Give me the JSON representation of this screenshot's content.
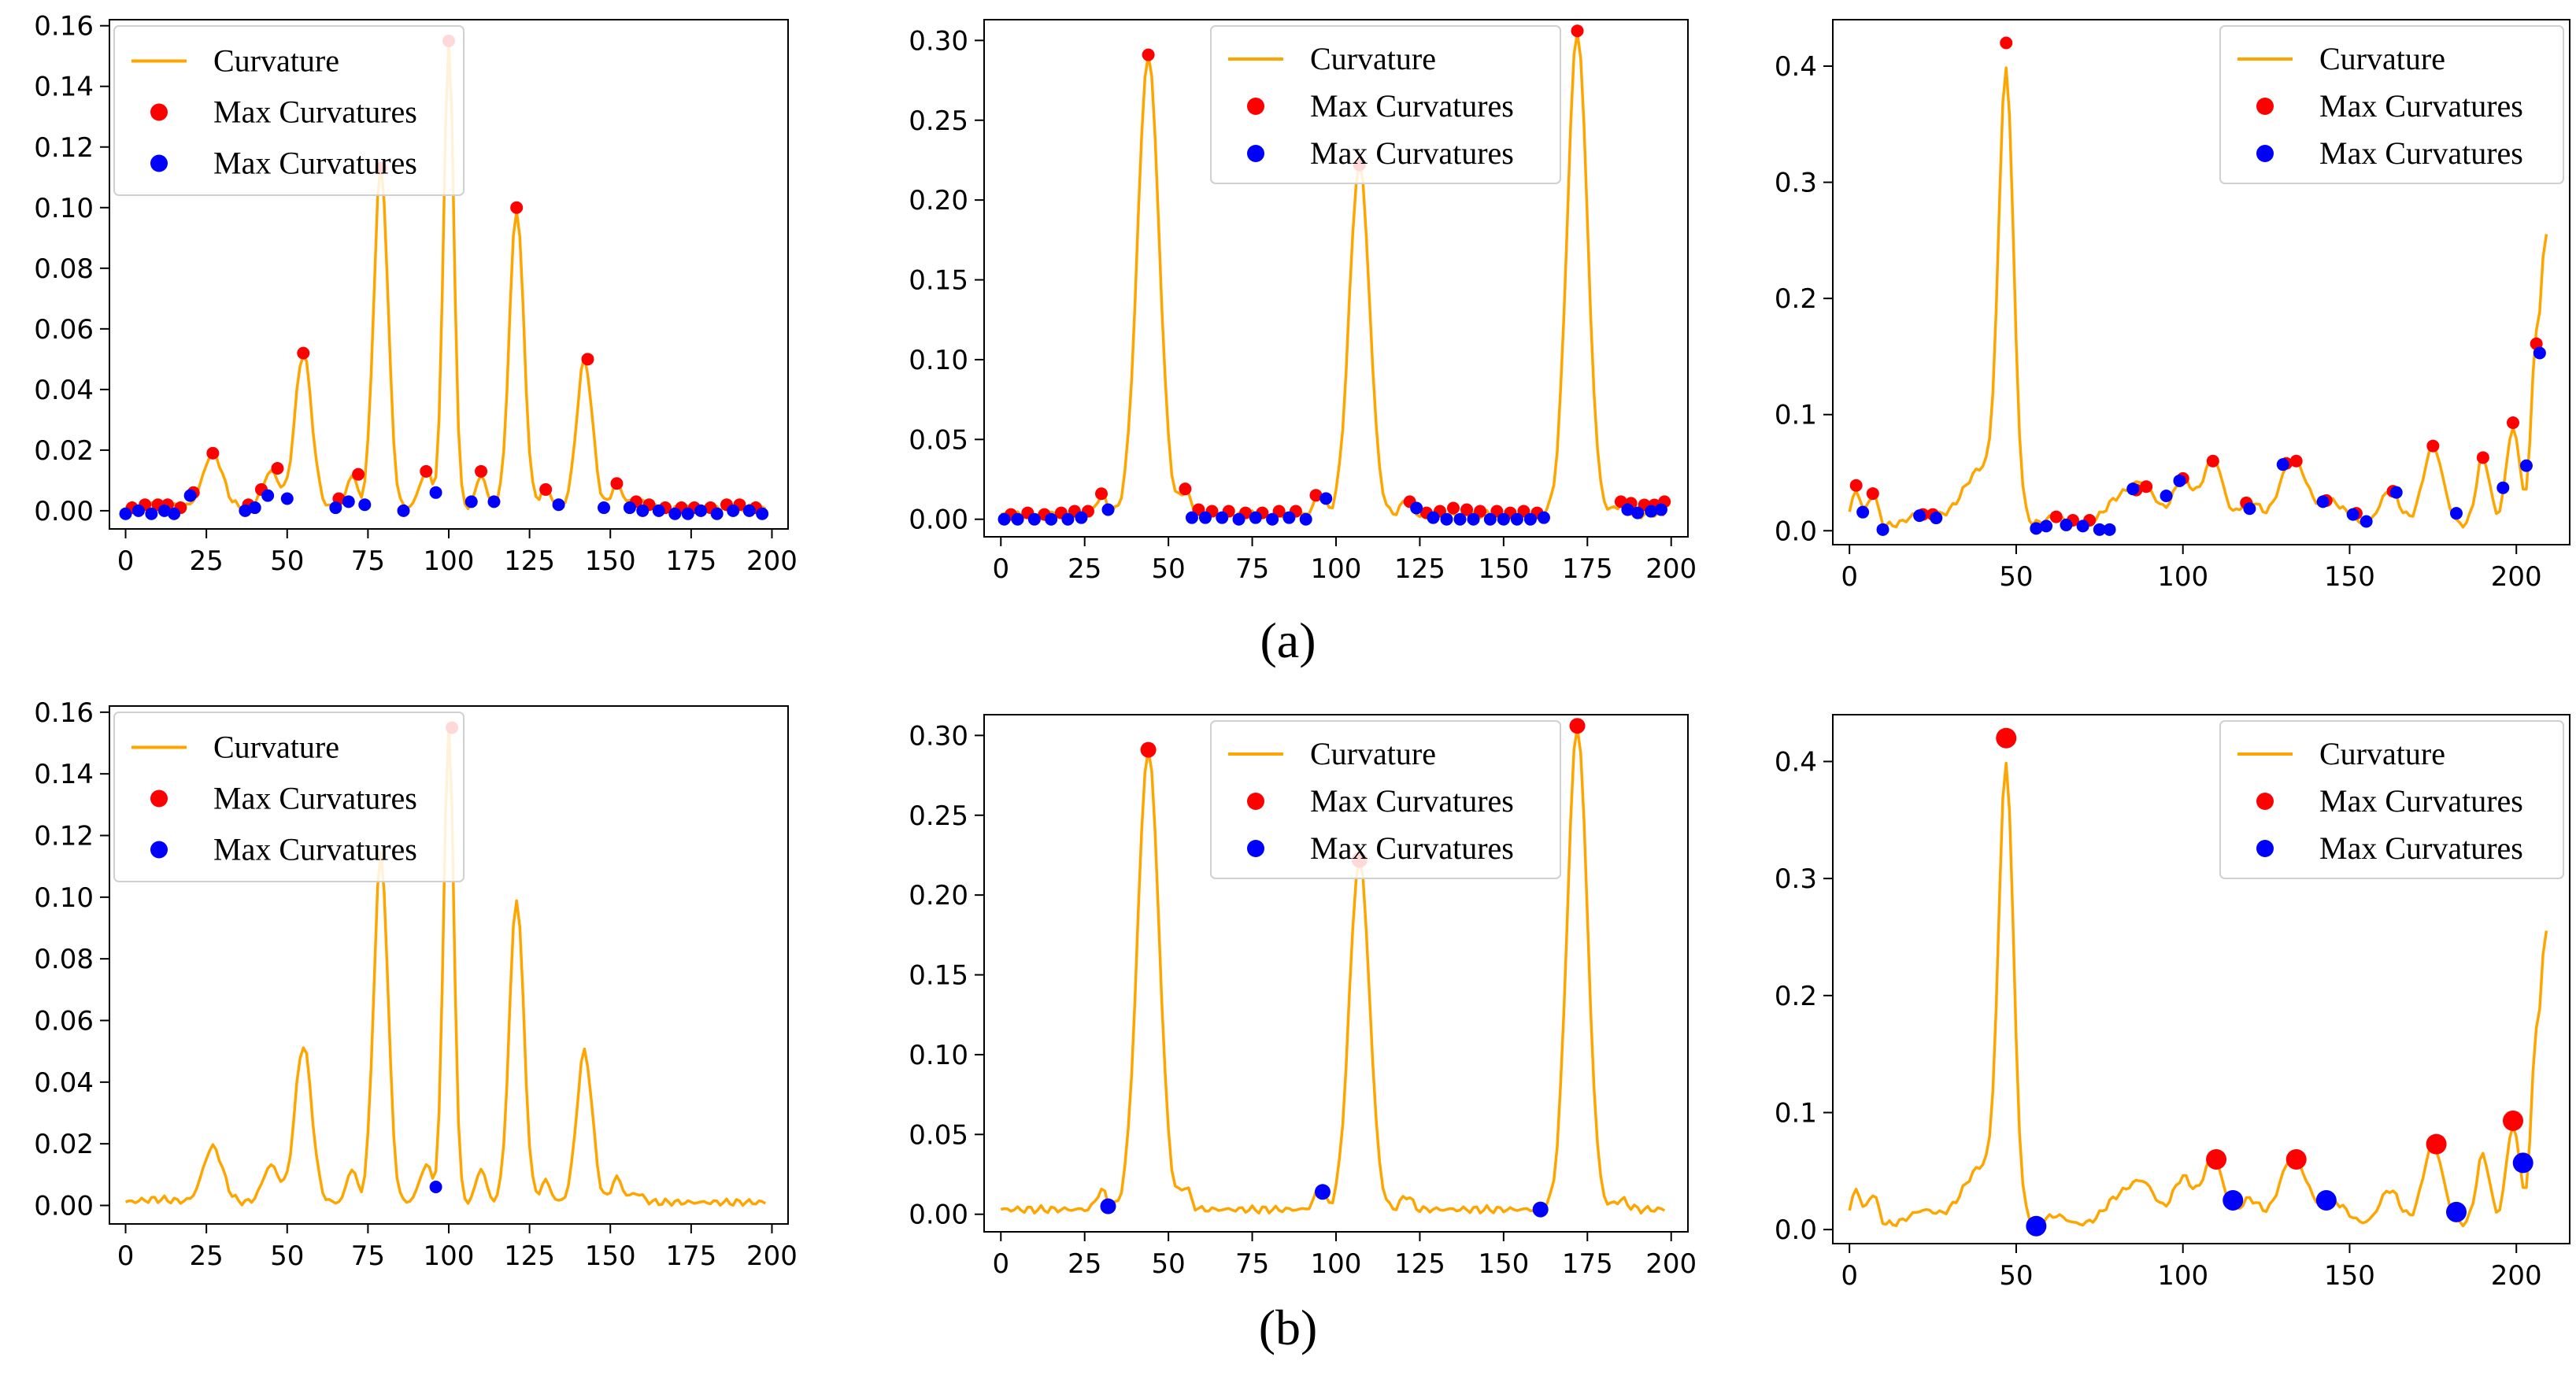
{
  "figure": {
    "caption_a": "(a)",
    "caption_b": "(b)"
  },
  "colors": {
    "curvature": "#FFA500",
    "max_curvatures": "#FF0000",
    "min_points": "#0000FF",
    "axes": "#000000",
    "background": "#FFFFFF"
  },
  "chart_data": [
    {
      "id": "a1",
      "row": "a",
      "type": "line",
      "xlim": [
        -5,
        205
      ],
      "ylim": [
        -0.006,
        0.162
      ],
      "xticks": [
        0,
        25,
        50,
        75,
        100,
        125,
        150,
        175,
        200
      ],
      "yticks": [
        0.0,
        0.02,
        0.04,
        0.06,
        0.08,
        0.1,
        0.12,
        0.14,
        0.16
      ],
      "ytick_labels": [
        "0.00",
        "0.02",
        "0.04",
        "0.06",
        "0.08",
        "0.10",
        "0.12",
        "0.14",
        "0.16"
      ],
      "legend": [
        "Curvature",
        "Max Curvatures",
        "Max Curvatures"
      ],
      "legend_loc": "upper-left",
      "curve": {
        "n": 199,
        "base": 0.001,
        "noise": 0.0012,
        "peaks": [
          [
            10,
            0.001,
            5
          ],
          [
            27,
            0.018,
            3
          ],
          [
            45,
            0.012,
            2.5
          ],
          [
            55,
            0.051,
            2.6
          ],
          [
            70,
            0.011,
            1.5
          ],
          [
            79,
            0.113,
            2.2
          ],
          [
            93,
            0.012,
            2.0
          ],
          [
            100,
            0.154,
            1.6
          ],
          [
            110,
            0.011,
            1.5
          ],
          [
            121,
            0.099,
            2.2
          ],
          [
            130,
            0.007,
            1.5
          ],
          [
            142,
            0.049,
            2.4
          ],
          [
            152,
            0.008,
            1.6
          ],
          [
            158,
            0.003,
            2
          ]
        ]
      },
      "max_points": {
        "x": [
          2,
          6,
          10,
          13,
          17,
          21,
          27,
          38,
          42,
          47,
          55,
          66,
          72,
          79,
          93,
          100,
          110,
          121,
          130,
          143,
          152,
          158,
          162,
          167,
          172,
          176,
          181,
          186,
          190,
          195
        ],
        "y": [
          0.001,
          0.002,
          0.002,
          0.002,
          0.001,
          0.006,
          0.019,
          0.002,
          0.007,
          0.014,
          0.052,
          0.004,
          0.012,
          0.113,
          0.013,
          0.155,
          0.013,
          0.1,
          0.007,
          0.05,
          0.009,
          0.003,
          0.002,
          0.001,
          0.001,
          0.001,
          0.001,
          0.002,
          0.002,
          0.001
        ]
      },
      "min_points": {
        "x": [
          0,
          4,
          8,
          12,
          15,
          20,
          37,
          40,
          44,
          50,
          65,
          69,
          74,
          86,
          96,
          107,
          114,
          134,
          148,
          156,
          160,
          165,
          170,
          174,
          178,
          183,
          188,
          193,
          197
        ],
        "y": [
          -0.001,
          0.0,
          -0.001,
          0.0,
          -0.001,
          0.005,
          0.0,
          0.001,
          0.005,
          0.004,
          0.001,
          0.003,
          0.002,
          0.0,
          0.006,
          0.003,
          0.003,
          0.002,
          0.001,
          0.001,
          0.0,
          0.0,
          -0.001,
          -0.001,
          0.0,
          -0.001,
          0.0,
          0.0,
          -0.001
        ]
      }
    },
    {
      "id": "a2",
      "row": "a",
      "type": "line",
      "xlim": [
        -5,
        205
      ],
      "ylim": [
        -0.011,
        0.313
      ],
      "xticks": [
        0,
        25,
        50,
        75,
        100,
        125,
        150,
        175,
        200
      ],
      "yticks": [
        0.0,
        0.05,
        0.1,
        0.15,
        0.2,
        0.25,
        0.3
      ],
      "ytick_labels": [
        "0.00",
        "0.05",
        "0.10",
        "0.15",
        "0.20",
        "0.25",
        "0.30"
      ],
      "legend": [
        "Curvature",
        "Max Curvatures",
        "Max Curvatures"
      ],
      "legend_loc": "upper-center",
      "curve": {
        "n": 199,
        "base": 0.003,
        "noise": 0.0025,
        "peaks": [
          [
            30,
            0.012,
            1.5
          ],
          [
            44,
            0.288,
            3.2
          ],
          [
            55,
            0.014,
            1.5
          ],
          [
            95,
            0.012,
            1.5
          ],
          [
            107,
            0.22,
            3.0
          ],
          [
            121,
            0.009,
            1.5
          ],
          [
            172,
            0.303,
            3.0
          ],
          [
            185,
            0.006,
            2
          ]
        ]
      },
      "max_points": {
        "x": [
          3,
          8,
          13,
          18,
          22,
          26,
          30,
          44,
          55,
          59,
          63,
          68,
          73,
          78,
          83,
          88,
          94,
          107,
          122,
          127,
          131,
          135,
          139,
          143,
          148,
          152,
          156,
          160,
          172,
          185,
          188,
          192,
          195,
          198
        ],
        "y": [
          0.003,
          0.004,
          0.003,
          0.004,
          0.005,
          0.005,
          0.016,
          0.291,
          0.019,
          0.006,
          0.005,
          0.005,
          0.004,
          0.004,
          0.005,
          0.005,
          0.015,
          0.222,
          0.011,
          0.004,
          0.005,
          0.007,
          0.006,
          0.005,
          0.005,
          0.004,
          0.005,
          0.004,
          0.306,
          0.011,
          0.01,
          0.009,
          0.009,
          0.011
        ]
      },
      "min_points": {
        "x": [
          1,
          5,
          10,
          15,
          20,
          24,
          32,
          57,
          61,
          66,
          71,
          76,
          81,
          86,
          91,
          97,
          124,
          129,
          133,
          137,
          141,
          146,
          150,
          154,
          158,
          162,
          187,
          190,
          194,
          197
        ],
        "y": [
          0.0,
          0.0,
          0.0,
          0.0,
          0.0,
          0.001,
          0.006,
          0.001,
          0.001,
          0.001,
          0.0,
          0.001,
          0.0,
          0.001,
          0.0,
          0.013,
          0.007,
          0.001,
          0.0,
          0.0,
          0.0,
          0.0,
          0.0,
          0.0,
          0.0,
          0.001,
          0.006,
          0.004,
          0.005,
          0.006
        ]
      }
    },
    {
      "id": "a3",
      "row": "a",
      "type": "line",
      "xlim": [
        -5,
        216
      ],
      "ylim": [
        -0.012,
        0.44
      ],
      "xticks": [
        0,
        50,
        100,
        150,
        200
      ],
      "yticks": [
        0.0,
        0.1,
        0.2,
        0.3,
        0.4
      ],
      "ytick_labels": [
        "0.0",
        "0.1",
        "0.2",
        "0.3",
        "0.4"
      ],
      "legend": [
        "Curvature",
        "Max Curvatures",
        "Max Curvatures"
      ],
      "legend_loc": "upper-right",
      "curve": {
        "n": 210,
        "base": 0.004,
        "noise": 0.003,
        "peaks": [
          [
            2,
            0.03,
            1.5
          ],
          [
            7,
            0.027,
            1.5
          ],
          [
            22,
            0.012,
            4
          ],
          [
            40,
            0.05,
            6
          ],
          [
            47,
            0.37,
            2.2
          ],
          [
            62,
            0.008,
            3
          ],
          [
            80,
            0.02,
            4
          ],
          [
            88,
            0.035,
            4
          ],
          [
            100,
            0.04,
            3
          ],
          [
            109,
            0.058,
            3
          ],
          [
            120,
            0.022,
            3
          ],
          [
            133,
            0.058,
            4
          ],
          [
            145,
            0.02,
            4
          ],
          [
            162,
            0.03,
            3
          ],
          [
            175,
            0.068,
            3
          ],
          [
            190,
            0.06,
            2
          ],
          [
            199,
            0.085,
            2
          ],
          [
            206,
            0.16,
            1.5
          ],
          [
            209,
            0.23,
            1.2
          ]
        ]
      },
      "max_points": {
        "x": [
          2,
          7,
          22,
          25,
          47,
          62,
          67,
          72,
          86,
          89,
          100,
          109,
          119,
          131,
          134,
          143,
          152,
          163,
          175,
          190,
          199,
          206
        ],
        "y": [
          0.039,
          0.032,
          0.014,
          0.014,
          0.42,
          0.012,
          0.009,
          0.009,
          0.035,
          0.038,
          0.045,
          0.06,
          0.024,
          0.058,
          0.06,
          0.026,
          0.015,
          0.034,
          0.073,
          0.063,
          0.093,
          0.161
        ]
      },
      "min_points": {
        "x": [
          4,
          10,
          21,
          26,
          56,
          59,
          65,
          70,
          75,
          78,
          85,
          95,
          99,
          120,
          130,
          142,
          151,
          155,
          164,
          182,
          196,
          203,
          207
        ],
        "y": [
          0.016,
          0.001,
          0.013,
          0.011,
          0.002,
          0.004,
          0.005,
          0.004,
          0.001,
          0.001,
          0.036,
          0.03,
          0.043,
          0.019,
          0.057,
          0.025,
          0.014,
          0.008,
          0.033,
          0.015,
          0.037,
          0.056,
          0.153
        ]
      }
    },
    {
      "id": "b1",
      "row": "b",
      "type": "line",
      "xlim": [
        -5,
        205
      ],
      "ylim": [
        -0.006,
        0.162
      ],
      "xticks": [
        0,
        25,
        50,
        75,
        100,
        125,
        150,
        175,
        200
      ],
      "yticks": [
        0.0,
        0.02,
        0.04,
        0.06,
        0.08,
        0.1,
        0.12,
        0.14,
        0.16
      ],
      "ytick_labels": [
        "0.00",
        "0.02",
        "0.04",
        "0.06",
        "0.08",
        "0.10",
        "0.12",
        "0.14",
        "0.16"
      ],
      "legend": [
        "Curvature",
        "Max Curvatures",
        "Max Curvatures"
      ],
      "legend_loc": "upper-left",
      "curve": {
        "n": 199,
        "base": 0.001,
        "noise": 0.0012,
        "peaks": [
          [
            10,
            0.001,
            5
          ],
          [
            27,
            0.018,
            3
          ],
          [
            45,
            0.012,
            2.5
          ],
          [
            55,
            0.051,
            2.6
          ],
          [
            70,
            0.011,
            1.5
          ],
          [
            79,
            0.113,
            2.2
          ],
          [
            93,
            0.012,
            2.0
          ],
          [
            100,
            0.154,
            1.6
          ],
          [
            110,
            0.011,
            1.5
          ],
          [
            121,
            0.099,
            2.2
          ],
          [
            130,
            0.007,
            1.5
          ],
          [
            142,
            0.049,
            2.4
          ],
          [
            152,
            0.008,
            1.6
          ],
          [
            158,
            0.003,
            2
          ]
        ]
      },
      "max_points": {
        "x": [
          101
        ],
        "y": [
          0.155
        ]
      },
      "min_points": {
        "x": [
          96
        ],
        "y": [
          0.006
        ]
      }
    },
    {
      "id": "b2",
      "row": "b",
      "type": "line",
      "xlim": [
        -5,
        205
      ],
      "ylim": [
        -0.011,
        0.313
      ],
      "xticks": [
        0,
        25,
        50,
        75,
        100,
        125,
        150,
        175,
        200
      ],
      "yticks": [
        0.0,
        0.05,
        0.1,
        0.15,
        0.2,
        0.25,
        0.3
      ],
      "ytick_labels": [
        "0.00",
        "0.05",
        "0.10",
        "0.15",
        "0.20",
        "0.25",
        "0.30"
      ],
      "legend": [
        "Curvature",
        "Max Curvatures",
        "Max Curvatures"
      ],
      "legend_loc": "upper-center",
      "curve": {
        "n": 199,
        "base": 0.003,
        "noise": 0.0025,
        "peaks": [
          [
            30,
            0.012,
            1.5
          ],
          [
            44,
            0.288,
            3.2
          ],
          [
            55,
            0.014,
            1.5
          ],
          [
            95,
            0.012,
            1.5
          ],
          [
            107,
            0.22,
            3.0
          ],
          [
            121,
            0.009,
            1.5
          ],
          [
            172,
            0.303,
            3.0
          ],
          [
            185,
            0.006,
            2
          ]
        ]
      },
      "max_points": {
        "x": [
          44,
          107,
          172
        ],
        "y": [
          0.291,
          0.222,
          0.306
        ]
      },
      "min_points": {
        "x": [
          32,
          96,
          161
        ],
        "y": [
          0.005,
          0.014,
          0.003
        ]
      }
    },
    {
      "id": "b3",
      "row": "b",
      "type": "line",
      "xlim": [
        -5,
        216
      ],
      "ylim": [
        -0.012,
        0.44
      ],
      "xticks": [
        0,
        50,
        100,
        150,
        200
      ],
      "yticks": [
        0.0,
        0.1,
        0.2,
        0.3,
        0.4
      ],
      "ytick_labels": [
        "0.0",
        "0.1",
        "0.2",
        "0.3",
        "0.4"
      ],
      "legend": [
        "Curvature",
        "Max Curvatures",
        "Max Curvatures"
      ],
      "legend_loc": "upper-right",
      "curve": {
        "n": 210,
        "base": 0.004,
        "noise": 0.003,
        "peaks": [
          [
            2,
            0.03,
            1.5
          ],
          [
            7,
            0.027,
            1.5
          ],
          [
            22,
            0.012,
            4
          ],
          [
            40,
            0.05,
            6
          ],
          [
            47,
            0.37,
            2.2
          ],
          [
            62,
            0.008,
            3
          ],
          [
            80,
            0.02,
            4
          ],
          [
            88,
            0.035,
            4
          ],
          [
            100,
            0.04,
            3
          ],
          [
            109,
            0.058,
            3
          ],
          [
            120,
            0.022,
            3
          ],
          [
            133,
            0.058,
            4
          ],
          [
            145,
            0.02,
            4
          ],
          [
            162,
            0.03,
            3
          ],
          [
            175,
            0.068,
            3
          ],
          [
            190,
            0.06,
            2
          ],
          [
            199,
            0.085,
            2
          ],
          [
            206,
            0.16,
            1.5
          ],
          [
            209,
            0.23,
            1.2
          ]
        ]
      },
      "max_points": {
        "x": [
          47,
          110,
          134,
          176,
          199
        ],
        "y": [
          0.42,
          0.06,
          0.06,
          0.073,
          0.093
        ]
      },
      "min_points": {
        "x": [
          56,
          115,
          143,
          182,
          202
        ],
        "y": [
          0.003,
          0.025,
          0.025,
          0.015,
          0.057
        ]
      }
    }
  ]
}
